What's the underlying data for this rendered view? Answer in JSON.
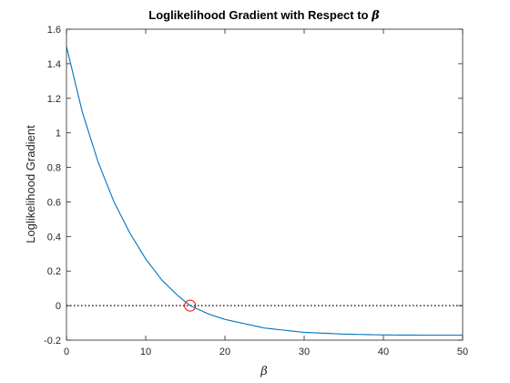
{
  "chart_data": {
    "type": "line",
    "title_prefix": "Loglikelihood  Gradient  with  Respect  to  ",
    "title_symbol": "β",
    "xlabel": "β",
    "ylabel": "Loglikelihood Gradient",
    "xlim": [
      0,
      50
    ],
    "ylim": [
      -0.2,
      1.6
    ],
    "xticks": [
      0,
      10,
      20,
      30,
      40,
      50
    ],
    "yticks": [
      -0.2,
      0,
      0.2,
      0.4,
      0.6,
      0.8,
      1,
      1.2,
      1.4,
      1.6
    ],
    "xtick_labels": [
      "0",
      "10",
      "20",
      "30",
      "40",
      "50"
    ],
    "ytick_labels": [
      "-0.2",
      "0",
      "0.2",
      "0.4",
      "0.6",
      "0.8",
      "1",
      "1.2",
      "1.4",
      "1.6"
    ],
    "grid": false,
    "series": [
      {
        "color": "#0072BD",
        "x": [
          0,
          2,
          4,
          6,
          8,
          10,
          12,
          14,
          15.6,
          18,
          20,
          25,
          30,
          35,
          40,
          45,
          50
        ],
        "y": [
          1.5,
          1.12,
          0.83,
          0.6,
          0.42,
          0.27,
          0.15,
          0.06,
          0.0,
          -0.05,
          -0.08,
          -0.13,
          -0.155,
          -0.165,
          -0.17,
          -0.171,
          -0.171
        ]
      }
    ],
    "reference_line": {
      "y": 0,
      "style": "dotted",
      "color": "#000000"
    },
    "marker": {
      "x": 15.6,
      "y": 0,
      "shape": "circle",
      "color": "#FF0000"
    }
  }
}
